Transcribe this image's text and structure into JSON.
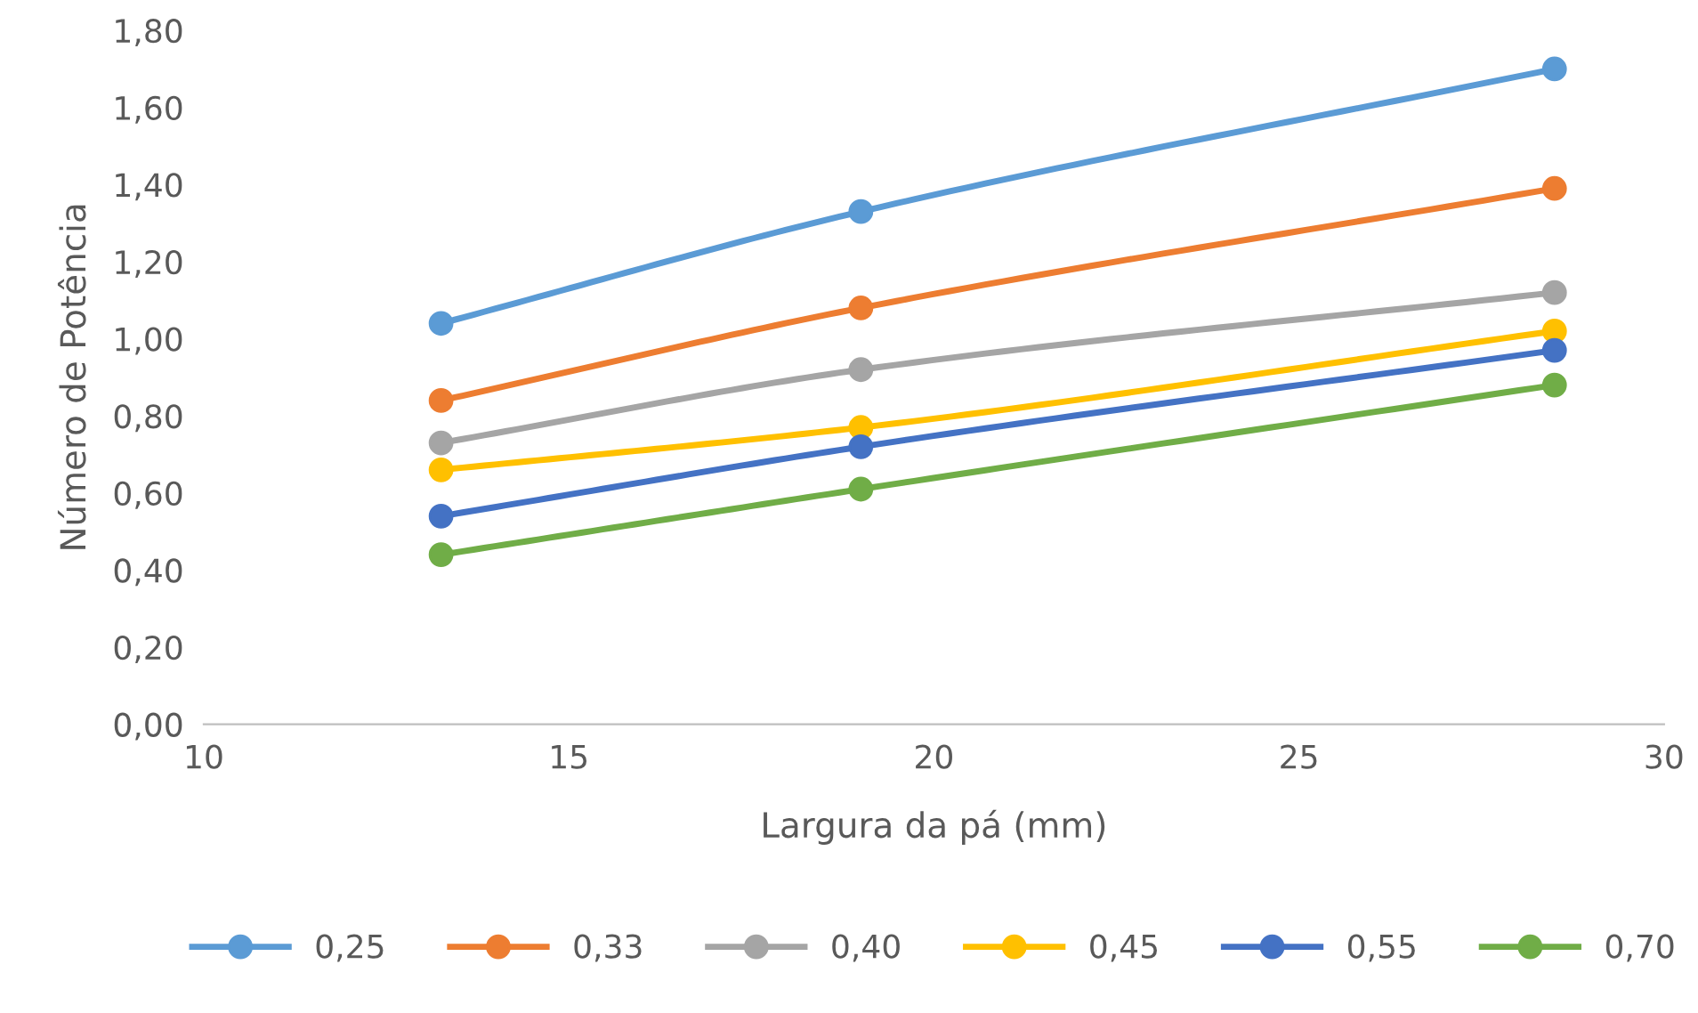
{
  "chart_data": {
    "type": "line",
    "xlabel": "Largura da pá (mm)",
    "ylabel": "Número de Potência",
    "x": [
      13.25,
      19.0,
      28.5
    ],
    "series": [
      {
        "name": "0,25",
        "color": "#5b9bd5",
        "values": [
          1.04,
          1.33,
          1.7
        ]
      },
      {
        "name": "0,33",
        "color": "#ed7d31",
        "values": [
          0.84,
          1.08,
          1.39
        ]
      },
      {
        "name": "0,40",
        "color": "#a5a5a5",
        "values": [
          0.73,
          0.92,
          1.12
        ]
      },
      {
        "name": "0,45",
        "color": "#ffc000",
        "values": [
          0.66,
          0.77,
          1.02
        ]
      },
      {
        "name": "0,55",
        "color": "#4472c4",
        "values": [
          0.54,
          0.72,
          0.97
        ]
      },
      {
        "name": "0,70",
        "color": "#70ad47",
        "values": [
          0.44,
          0.61,
          0.88
        ]
      }
    ],
    "xlim": [
      10,
      30
    ],
    "xticks": [
      10,
      15,
      20,
      25,
      30
    ],
    "ylim": [
      0,
      1.8
    ],
    "yticks": [
      {
        "value": 0,
        "label": "0,00"
      },
      {
        "value": 0.2,
        "label": "0,20"
      },
      {
        "value": 0.4,
        "label": "0,40"
      },
      {
        "value": 0.6,
        "label": "0,60"
      },
      {
        "value": 0.8,
        "label": "0,80"
      },
      {
        "value": 1.0,
        "label": "1,00"
      },
      {
        "value": 1.2,
        "label": "1,20"
      },
      {
        "value": 1.4,
        "label": "1,40"
      },
      {
        "value": 1.6,
        "label": "1,60"
      },
      {
        "value": 1.8,
        "label": "1,80"
      }
    ],
    "marker": "circle",
    "line_style": "solid",
    "grid": false,
    "legend": "bottom"
  }
}
